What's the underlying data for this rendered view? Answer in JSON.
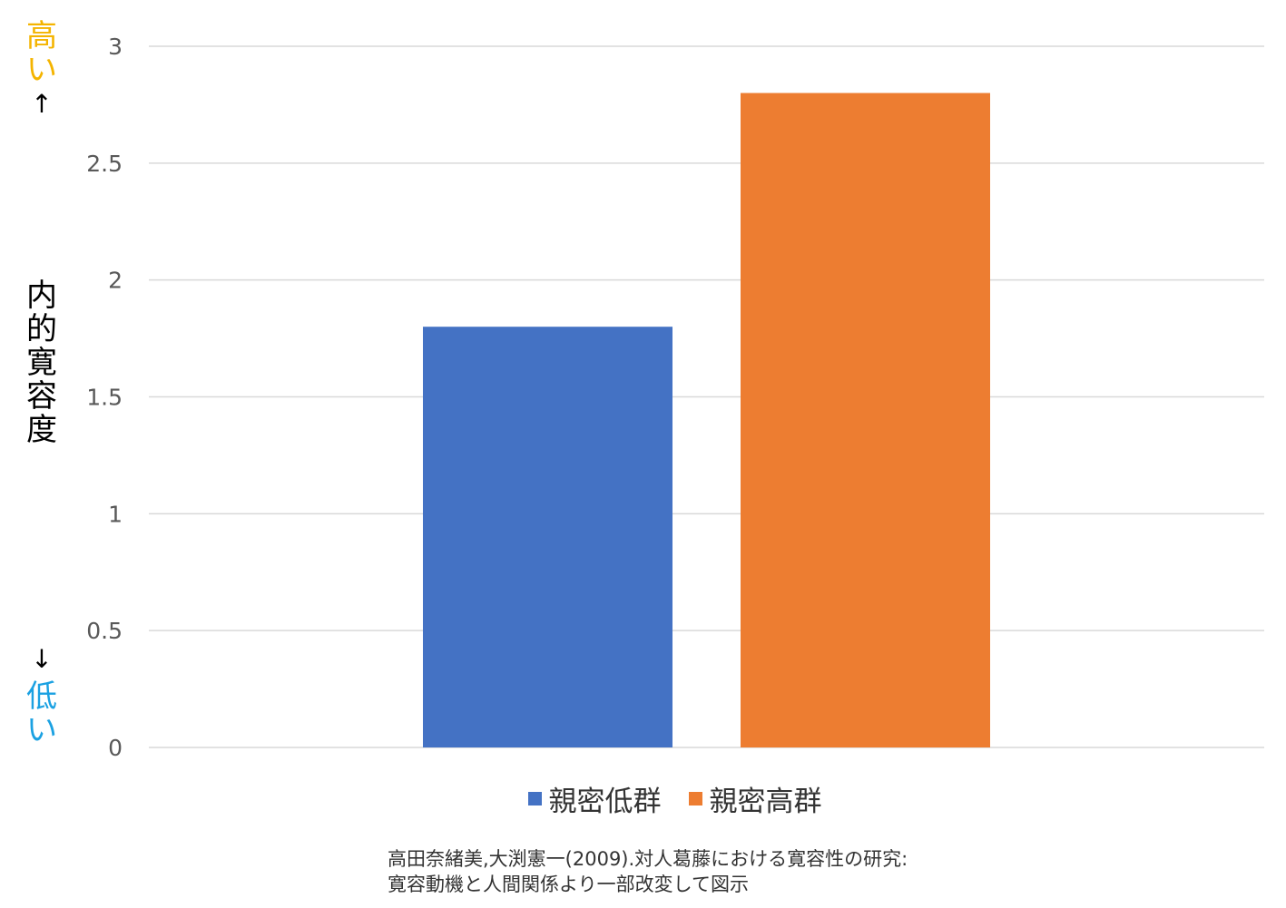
{
  "y_axis_label": {
    "high": "高い",
    "up_arrow": "↑",
    "main": "内的寛容度",
    "down_arrow": "↓",
    "low": "低い"
  },
  "source": {
    "line1": "高田奈緒美,大渕憲一(2009).対人葛藤における寛容性の研究:",
    "line2": "寛容動機と人間関係より一部改変して図示"
  },
  "colors": {
    "high_label": "#f4b400",
    "low_label": "#1ba1e2",
    "grid": "#d9d9d9",
    "tick_text": "#595959"
  },
  "chart_data": {
    "type": "bar",
    "categories": [
      ""
    ],
    "series": [
      {
        "name": "親密低群",
        "values": [
          1.8
        ],
        "color": "#4472c4"
      },
      {
        "name": "親密高群",
        "values": [
          2.8
        ],
        "color": "#ed7d31"
      }
    ],
    "ylim": [
      0,
      3
    ],
    "yticks": [
      0,
      0.5,
      1,
      1.5,
      2,
      2.5,
      3
    ],
    "ytick_labels": [
      "0",
      "0.5",
      "1",
      "1.5",
      "2",
      "2.5",
      "3"
    ],
    "grid": true,
    "legend_position": "bottom"
  }
}
